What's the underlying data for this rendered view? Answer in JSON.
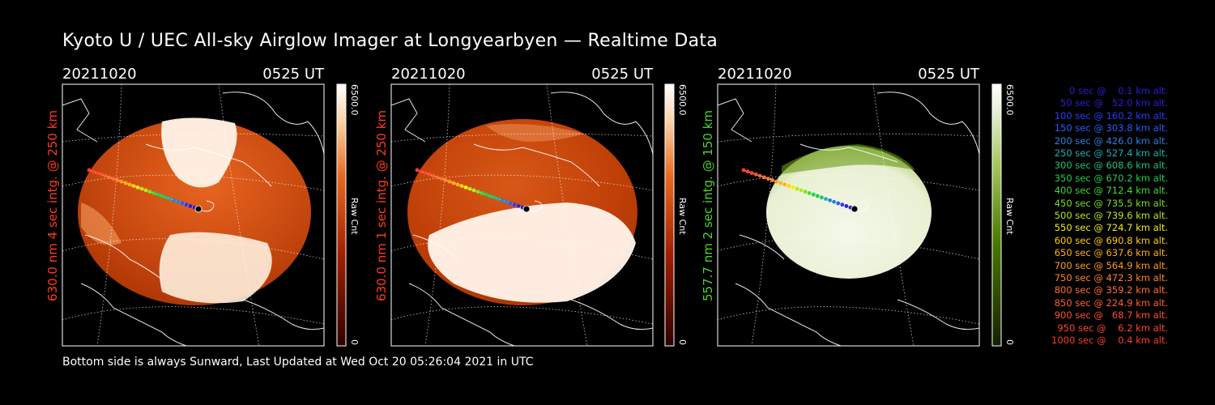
{
  "title": "Kyoto U / UEC All-sky Airglow Imager at Longyearbyen — Realtime Data",
  "footer": "Bottom side is always Sunward, Last Updated at Wed Oct 20 05:26:04 2021 in UTC",
  "panels": [
    {
      "date": "20211020",
      "time": "0525 UT",
      "side_label": "630.0 nm 4 sec intg. @ 250 km",
      "side_label_color": "#ff3b1f",
      "cbar_max": "6500.0",
      "cbar_unit": "Raw Cnt",
      "cbar_min": "0",
      "colormap": "red"
    },
    {
      "date": "20211020",
      "time": "0525 UT",
      "side_label": "630.0 nm 1 sec intg. @ 250 km",
      "side_label_color": "#ff3b1f",
      "cbar_max": "6500.0",
      "cbar_unit": "Raw Cnt",
      "cbar_min": "0",
      "colormap": "red"
    },
    {
      "date": "20211020",
      "time": "0525 UT",
      "side_label": "557.7 nm 2 sec intg. @ 150 km",
      "side_label_color": "#4cd42a",
      "cbar_max": "6500.0",
      "cbar_unit": "Raw Cnt",
      "cbar_min": "0",
      "colormap": "green"
    }
  ],
  "legend": [
    {
      "text": "0 sec @    0.1 km alt.",
      "color": "#2a1fd8"
    },
    {
      "text": "50 sec @   52.0 km alt.",
      "color": "#2a1fd8"
    },
    {
      "text": "100 sec @ 160.2 km alt.",
      "color": "#2a3bff"
    },
    {
      "text": "150 sec @ 303.8 km alt.",
      "color": "#2a5cff"
    },
    {
      "text": "200 sec @ 426.0 km alt.",
      "color": "#2a80e0"
    },
    {
      "text": "250 sec @ 527.4 km alt.",
      "color": "#1fb0b0"
    },
    {
      "text": "300 sec @ 608.6 km alt.",
      "color": "#1fc07a"
    },
    {
      "text": "350 sec @ 670.2 km alt.",
      "color": "#1fd050"
    },
    {
      "text": "400 sec @ 712.4 km alt.",
      "color": "#3cdc30"
    },
    {
      "text": "450 sec @ 735.5 km alt.",
      "color": "#7ae020"
    },
    {
      "text": "500 sec @ 739.6 km alt.",
      "color": "#b8e818"
    },
    {
      "text": "550 sec @ 724.7 km alt.",
      "color": "#f0f010"
    },
    {
      "text": "600 sec @ 690.8 km alt.",
      "color": "#ffd010"
    },
    {
      "text": "650 sec @ 637.6 km alt.",
      "color": "#ffb018"
    },
    {
      "text": "700 sec @ 564.9 km alt.",
      "color": "#ff9a20"
    },
    {
      "text": "750 sec @ 472.3 km alt.",
      "color": "#ff8428"
    },
    {
      "text": "800 sec @ 359.2 km alt.",
      "color": "#ff7030"
    },
    {
      "text": "850 sec @ 224.9 km alt.",
      "color": "#ff6030"
    },
    {
      "text": "900 sec @   68.7 km alt.",
      "color": "#ff5030"
    },
    {
      "text": "950 sec @    6.2 km alt.",
      "color": "#ff4530"
    },
    {
      "text": "1000 sec @    0.4 km alt.",
      "color": "#ff3b30"
    }
  ],
  "colors": {
    "background": "#000000",
    "text": "#ffffff",
    "aurora_red_dark": "#a02800",
    "aurora_red_mid": "#d85010",
    "aurora_red_light": "#fff0e0",
    "aurora_green_dark": "#5a8a10",
    "aurora_green_light": "#f4f8e8"
  }
}
